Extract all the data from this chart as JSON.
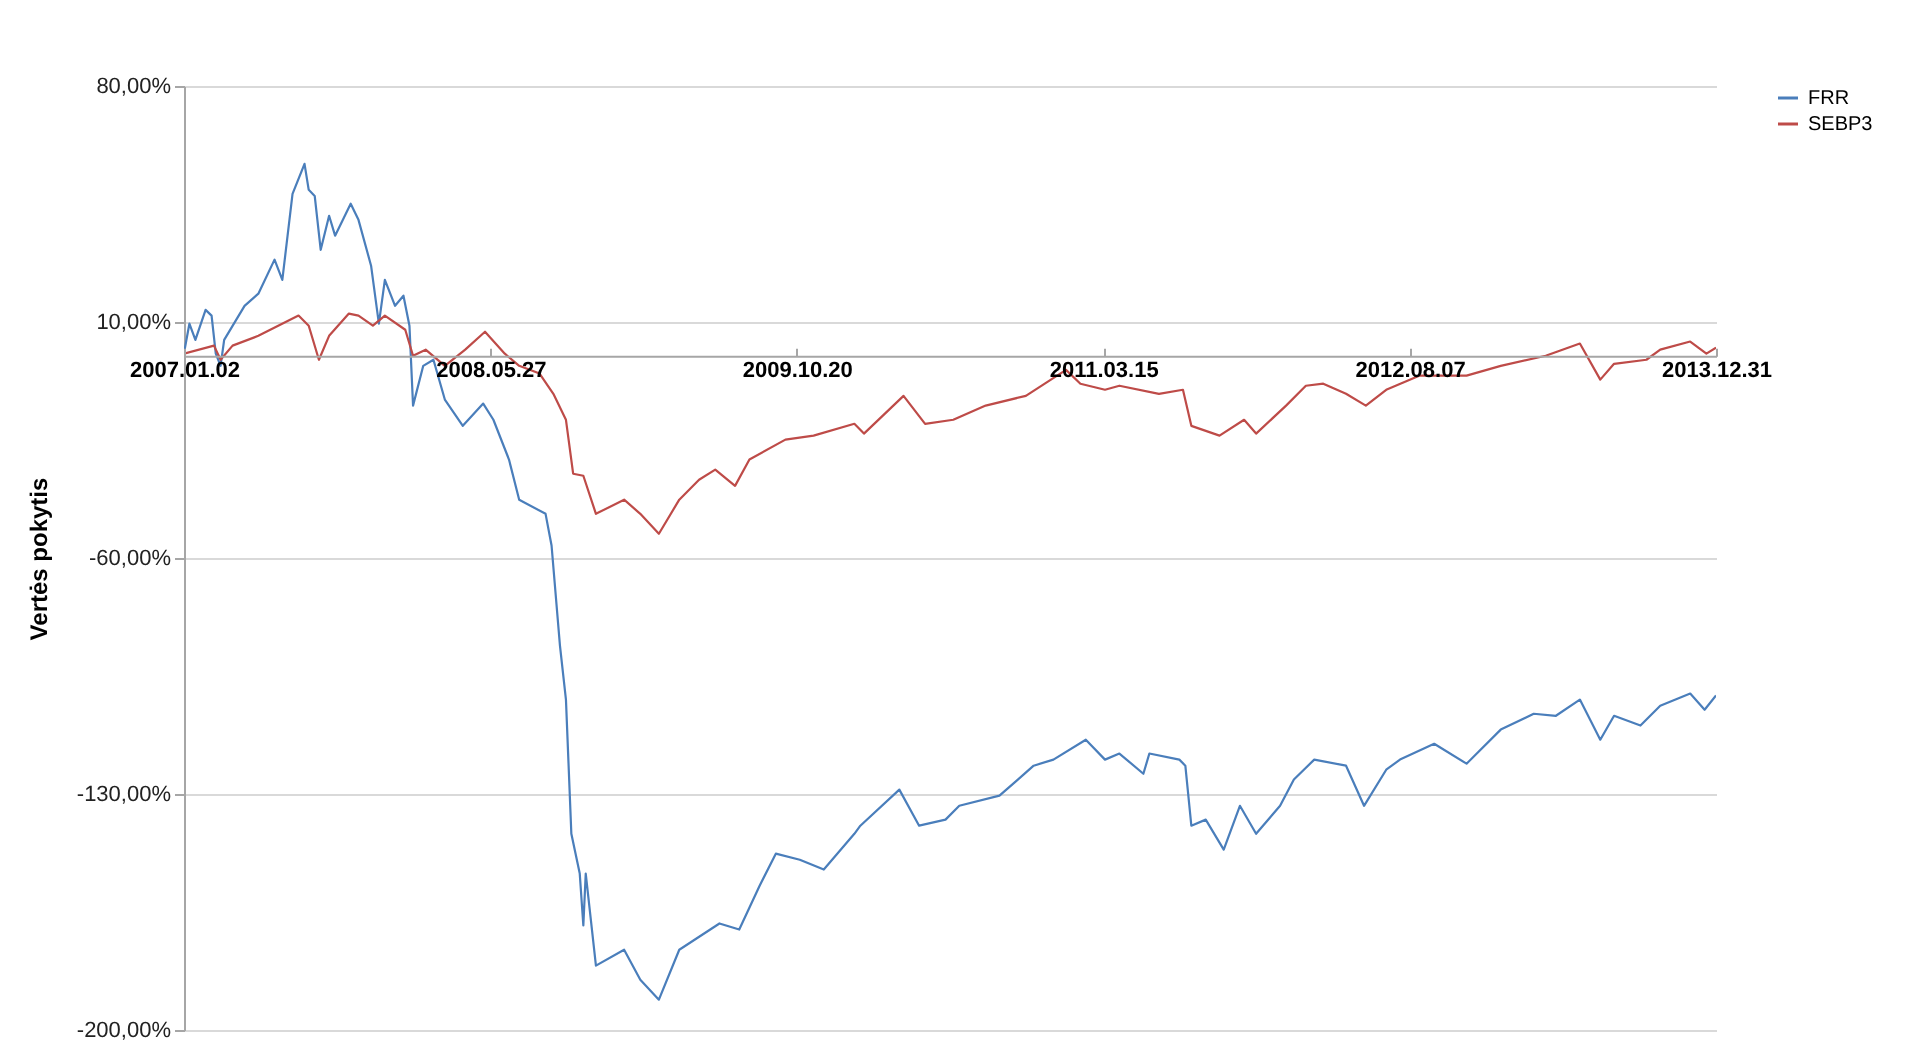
{
  "chart_data": {
    "type": "line",
    "ylabel": "Vertės pokytis",
    "legend": "right",
    "grid": "y",
    "line_style": "solid",
    "marker": "none",
    "xlim": [
      "2007-01-02",
      "2013-12-31"
    ],
    "xticks": [
      {
        "value": "2007-01-02",
        "label": "2007.01.02"
      },
      {
        "value": "2008-05-27",
        "label": "2008.05.27"
      },
      {
        "value": "2009-10-20",
        "label": "2009.10.20"
      },
      {
        "value": "2011-03-15",
        "label": "2011.03.15"
      },
      {
        "value": "2012-08-07",
        "label": "2012.08.07"
      },
      {
        "value": "2013-12-31",
        "label": "2013.12.31"
      }
    ],
    "ylim": [
      -200,
      80
    ],
    "yticks": [
      {
        "value": -200,
        "label": "-200,00%"
      },
      {
        "value": -130,
        "label": "-130,00%"
      },
      {
        "value": -60,
        "label": "-60,00%"
      },
      {
        "value": 10,
        "label": "10,00%"
      },
      {
        "value": 80,
        "label": "80,00%"
      }
    ],
    "series": [
      {
        "name": "FRR",
        "color": "#4a7ebb",
        "x": [
          "2007-01-02",
          "2007-01-11",
          "2007-01-21",
          "2007-02-07",
          "2007-02-17",
          "2007-02-24",
          "2007-03-04",
          "2007-03-10",
          "2007-04-13",
          "2007-05-06",
          "2007-06-02",
          "2007-06-15",
          "2007-07-02",
          "2007-07-22",
          "2007-07-29",
          "2007-08-08",
          "2007-08-18",
          "2007-09-01",
          "2007-09-11",
          "2007-10-07",
          "2007-10-20",
          "2007-11-10",
          "2007-11-23",
          "2007-12-03",
          "2007-12-20",
          "2008-01-03",
          "2008-01-13",
          "2008-01-19",
          "2008-02-05",
          "2008-02-22",
          "2008-03-12",
          "2008-04-11",
          "2008-05-15",
          "2008-06-01",
          "2008-06-27",
          "2008-07-14",
          "2008-08-27",
          "2008-09-06",
          "2008-09-20",
          "2008-09-30",
          "2008-10-09",
          "2008-10-23",
          "2008-10-29",
          "2008-11-02",
          "2008-11-19",
          "2009-01-05",
          "2009-02-01",
          "2009-03-04",
          "2009-04-07",
          "2009-06-13",
          "2009-07-16",
          "2009-08-19",
          "2009-09-15",
          "2009-10-25",
          "2009-12-04",
          "2010-01-24",
          "2010-02-03",
          "2010-04-09",
          "2010-05-12",
          "2010-06-25",
          "2010-07-18",
          "2010-09-23",
          "2010-11-19",
          "2010-12-22",
          "2011-02-14",
          "2011-03-18",
          "2011-04-11",
          "2011-05-21",
          "2011-05-31",
          "2011-07-20",
          "2011-07-30",
          "2011-08-09",
          "2011-09-02",
          "2011-10-02",
          "2011-10-29",
          "2011-11-25",
          "2012-01-04",
          "2012-01-27",
          "2012-03-01",
          "2012-04-23",
          "2012-05-23",
          "2012-06-29",
          "2012-07-22",
          "2012-09-17",
          "2012-11-10",
          "2013-01-06",
          "2013-03-02",
          "2013-04-08",
          "2013-05-18",
          "2013-06-21",
          "2013-07-14",
          "2013-08-27",
          "2013-09-29",
          "2013-11-18",
          "2013-12-12",
          "2013-12-31"
        ],
        "values": [
          0.8,
          9.5,
          4.7,
          13.6,
          11.9,
          0.6,
          -3.0,
          4.7,
          14.8,
          18.4,
          28.5,
          22.5,
          48.0,
          56.9,
          49.2,
          47.4,
          31.4,
          41.5,
          35.6,
          45.1,
          40.3,
          26.7,
          9.5,
          22.5,
          14.8,
          17.8,
          8.9,
          -14.8,
          -3.0,
          -1.2,
          -13.0,
          -20.8,
          -14.2,
          -19.0,
          -30.8,
          -42.7,
          -46.9,
          -56.3,
          -86.0,
          -102.0,
          -141.8,
          -153.6,
          -169.0,
          -153.6,
          -180.9,
          -176.2,
          -185.1,
          -191.0,
          -176.2,
          -168.4,
          -170.2,
          -157.2,
          -147.7,
          -149.5,
          -152.4,
          -141.8,
          -139.4,
          -128.7,
          -139.4,
          -137.6,
          -133.5,
          -130.5,
          -121.6,
          -119.8,
          -113.9,
          -119.8,
          -118.0,
          -124.0,
          -118.0,
          -119.8,
          -121.6,
          -139.4,
          -137.6,
          -146.5,
          -133.5,
          -141.8,
          -133.5,
          -125.7,
          -119.8,
          -121.6,
          -133.5,
          -122.8,
          -119.8,
          -115.1,
          -121.0,
          -110.9,
          -106.2,
          -106.8,
          -102.0,
          -113.9,
          -106.8,
          -109.7,
          -103.8,
          -100.2,
          -105.0,
          -100.8
        ]
      },
      {
        "name": "SEBP3",
        "color": "#be4b48",
        "x": [
          "2007-01-02",
          "2007-02-21",
          "2007-03-04",
          "2007-03-24",
          "2007-05-06",
          "2007-07-12",
          "2007-07-29",
          "2007-08-15",
          "2007-09-01",
          "2007-10-04",
          "2007-10-20",
          "2007-11-13",
          "2007-12-03",
          "2008-01-06",
          "2008-01-19",
          "2008-02-09",
          "2008-03-12",
          "2008-04-15",
          "2008-05-18",
          "2008-06-20",
          "2008-07-14",
          "2008-08-17",
          "2008-09-09",
          "2008-09-30",
          "2008-10-12",
          "2008-10-29",
          "2008-11-19",
          "2009-01-05",
          "2009-02-01",
          "2009-03-04",
          "2009-04-07",
          "2009-05-10",
          "2009-06-06",
          "2009-07-09",
          "2009-08-02",
          "2009-10-01",
          "2009-11-17",
          "2010-01-24",
          "2010-02-09",
          "2010-04-16",
          "2010-05-22",
          "2010-07-08",
          "2010-08-31",
          "2010-11-06",
          "2011-01-12",
          "2011-02-05",
          "2011-03-18",
          "2011-04-11",
          "2011-06-16",
          "2011-07-26",
          "2011-08-09",
          "2011-09-25",
          "2011-11-05",
          "2011-11-25",
          "2012-01-14",
          "2012-02-16",
          "2012-03-16",
          "2012-04-23",
          "2012-05-26",
          "2012-06-29",
          "2012-08-24",
          "2012-11-10",
          "2013-01-06",
          "2013-03-22",
          "2013-05-18",
          "2013-06-21",
          "2013-07-14",
          "2013-09-06",
          "2013-09-29",
          "2013-11-18",
          "2013-12-15",
          "2013-12-31"
        ],
        "values": [
          0.6,
          3.0,
          -1.2,
          3.0,
          5.9,
          11.9,
          8.9,
          -1.2,
          5.9,
          12.5,
          11.9,
          8.9,
          11.9,
          7.7,
          0.0,
          1.8,
          -3.0,
          1.8,
          7.1,
          0.6,
          -3.0,
          -5.3,
          -11.3,
          -19.0,
          -35.0,
          -35.6,
          -46.9,
          -42.7,
          -46.9,
          -52.8,
          -42.7,
          -36.8,
          -33.8,
          -38.6,
          -30.8,
          -24.9,
          -23.7,
          -20.2,
          -23.1,
          -11.9,
          -20.2,
          -19.0,
          -14.8,
          -11.9,
          -4.2,
          -8.3,
          -10.1,
          -8.9,
          -11.3,
          -10.1,
          -20.8,
          -23.7,
          -19.0,
          -23.1,
          -14.8,
          -8.9,
          -8.3,
          -11.3,
          -14.8,
          -10.1,
          -5.9,
          -5.9,
          -3.0,
          0.0,
          3.6,
          -7.1,
          -2.4,
          -1.2,
          1.8,
          4.2,
          0.6,
          2.4
        ]
      }
    ]
  }
}
